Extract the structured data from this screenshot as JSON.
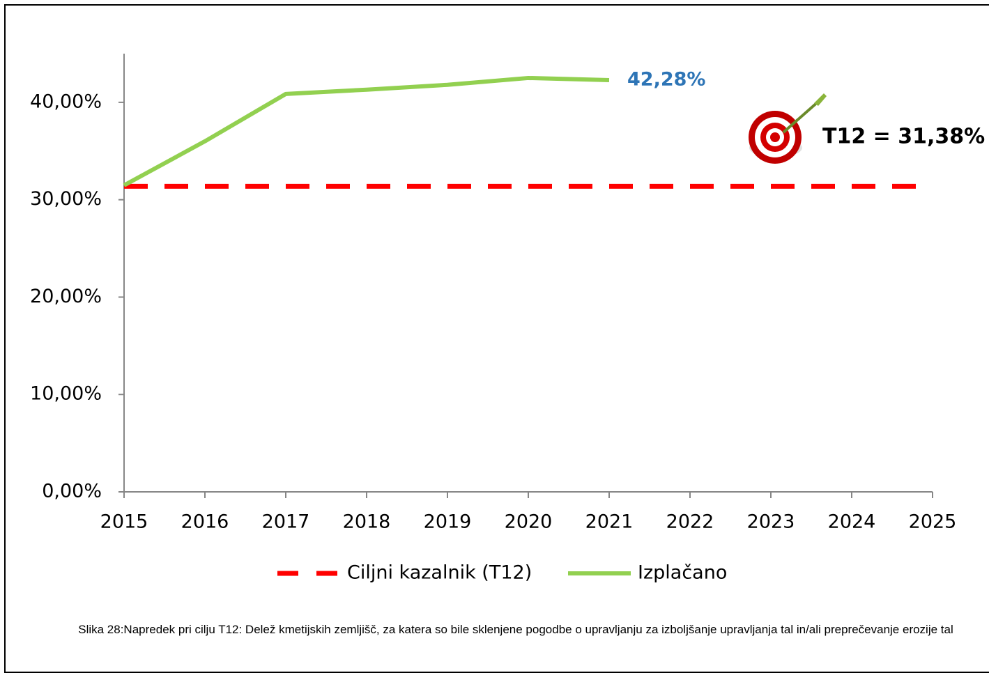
{
  "chart_data": {
    "type": "line",
    "categories": [
      "2015",
      "2016",
      "2017",
      "2018",
      "2019",
      "2020",
      "2021",
      "2022",
      "2023",
      "2024",
      "2025"
    ],
    "series": [
      {
        "name": "Ciljni kazalnik (T12)",
        "color": "#ff0000",
        "dashed": true,
        "values": [
          31.38,
          31.38,
          31.38,
          31.38,
          31.38,
          31.38,
          31.38,
          31.38,
          31.38,
          31.38,
          31.38
        ]
      },
      {
        "name": "Izplačano",
        "color": "#92d050",
        "values": [
          31.48,
          36.0,
          40.86,
          41.3,
          41.8,
          42.5,
          42.28,
          null,
          null,
          null,
          null
        ],
        "value_labels": [
          null,
          null,
          null,
          null,
          null,
          null,
          "42,28%",
          null,
          null,
          null,
          null
        ]
      }
    ],
    "ylim": [
      0,
      45
    ],
    "yticks": [
      {
        "value": 0,
        "label": "0,00%"
      },
      {
        "value": 10,
        "label": "10,00%"
      },
      {
        "value": 20,
        "label": "20,00%"
      },
      {
        "value": 30,
        "label": "30,00%"
      },
      {
        "value": 40,
        "label": "40,00%"
      }
    ],
    "annotation": "T12 = 31,38%",
    "legend": "bottom",
    "caption": "Slika 28:Napredek pri cilju T12: Delež kmetijskih zemljišč, za katera so bile sklenjene pogodbe o upravljanju za izboljšanje upravljanja tal in/ali preprečevanje erozije tal"
  }
}
